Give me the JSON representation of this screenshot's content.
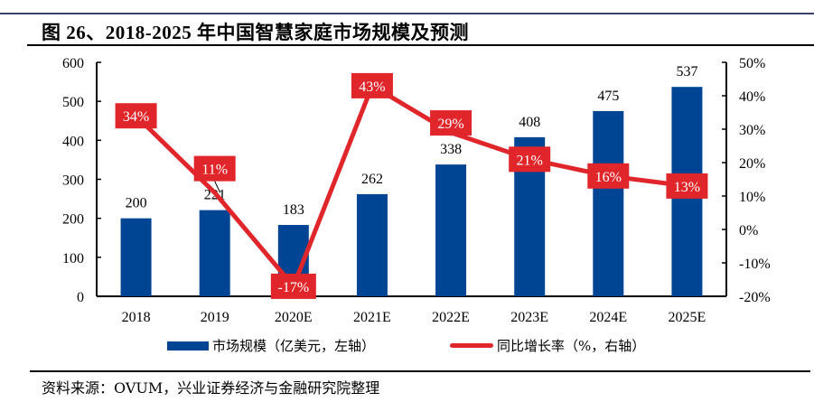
{
  "title": "图 26、2018-2025 年中国智慧家庭市场规模及预测",
  "source": "资料来源：OVUM，兴业证券经济与金融研究院整理",
  "chart_data": {
    "type": "bar+line",
    "categories": [
      "2018",
      "2019",
      "2020E",
      "2021E",
      "2022E",
      "2023E",
      "2024E",
      "2025E"
    ],
    "series": [
      {
        "name": "市场规模（亿美元，左轴）",
        "type": "bar",
        "axis": "left",
        "color": "#004594",
        "values": [
          200,
          221,
          183,
          262,
          338,
          408,
          475,
          537
        ],
        "labels": [
          "200",
          "221",
          "183",
          "262",
          "338",
          "408",
          "475",
          "537"
        ]
      },
      {
        "name": "同比增长率（%，右轴）",
        "type": "line",
        "axis": "right",
        "color": "#e0262a",
        "values": [
          34,
          11,
          -17,
          43,
          29,
          21,
          16,
          13
        ],
        "labels": [
          "34%",
          "11%",
          "-17%",
          "43%",
          "29%",
          "21%",
          "16%",
          "13%"
        ]
      }
    ],
    "left_axis": {
      "min": 0,
      "max": 600,
      "ticks": [
        "0",
        "100",
        "200",
        "300",
        "400",
        "500",
        "600"
      ]
    },
    "right_axis": {
      "min": -20,
      "max": 50,
      "ticks": [
        "-20%",
        "-10%",
        "0%",
        "10%",
        "20%",
        "30%",
        "40%",
        "50%"
      ]
    },
    "grid": false,
    "legend_position": "bottom"
  }
}
